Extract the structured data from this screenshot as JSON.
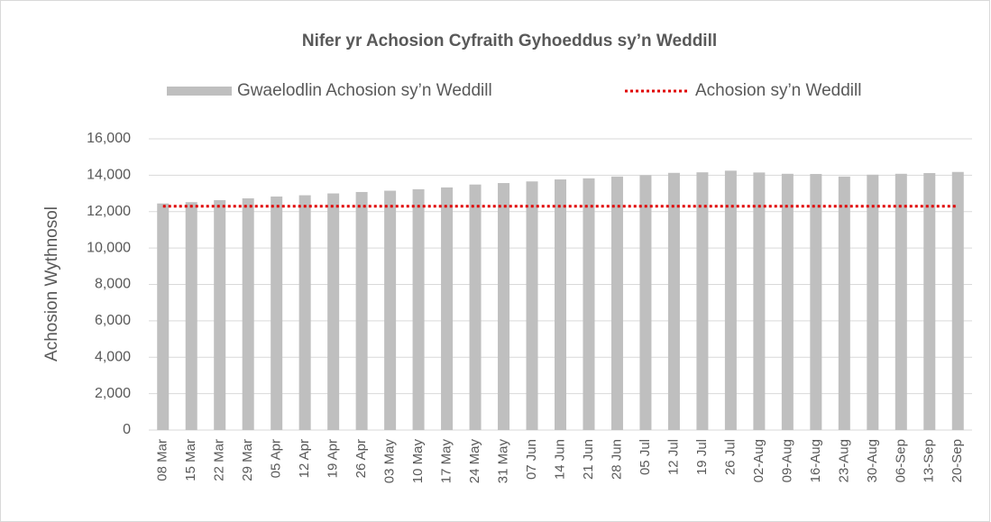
{
  "chart_data": {
    "type": "bar",
    "title": "Nifer yr Achosion Cyfraith Gyhoeddus sy’n Weddill",
    "y_label": "Achosion Wythnosol",
    "categories": [
      "08 Mar",
      "15 Mar",
      "22 Mar",
      "29 Mar",
      "05 Apr",
      "12 Apr",
      "19 Apr",
      "26 Apr",
      "03 May",
      "10 May",
      "17 May",
      "24 May",
      "31 May",
      "07 Jun",
      "14 Jun",
      "21 Jun",
      "28 Jun",
      "05 Jul",
      "12 Jul",
      "19 Jul",
      "26 Jul",
      "02-Aug",
      "09-Aug",
      "16-Aug",
      "23-Aug",
      "30-Aug",
      "06-Sep",
      "13-Sep",
      "20-Sep"
    ],
    "series": [
      {
        "name": "Gwaelodlin Achosion sy’n Weddill",
        "color": "#bfbfbf",
        "type": "bar",
        "values": [
          12450,
          12520,
          12630,
          12730,
          12830,
          12900,
          13000,
          13080,
          13150,
          13230,
          13330,
          13490,
          13570,
          13660,
          13770,
          13830,
          13930,
          14000,
          14130,
          14160,
          14250,
          14150,
          14080,
          14070,
          13930,
          14030,
          14080,
          14120,
          14180
        ]
      },
      {
        "name": "Achosion sy’n Weddill",
        "color": "#e00000",
        "type": "line",
        "values": [
          12300,
          12300,
          12300,
          12300,
          12300,
          12300,
          12300,
          12300,
          12300,
          12300,
          12300,
          12300,
          12300,
          12300,
          12300,
          12300,
          12300,
          12300,
          12300,
          12300,
          12300,
          12300,
          12300,
          12300,
          12300,
          12300,
          12300,
          12300,
          12300
        ]
      }
    ],
    "ylim": [
      0,
      16000
    ],
    "yticks": [
      0,
      {
        "value": 2000,
        "label": "2,000"
      },
      {
        "value": 4000,
        "label": "4,000"
      },
      {
        "value": 6000,
        "label": "6,000"
      },
      {
        "value": 8000,
        "label": "8,000"
      },
      {
        "value": 10000,
        "label": "10,000"
      },
      {
        "value": 12000,
        "label": "12,000"
      },
      {
        "value": 14000,
        "label": "14,000"
      },
      {
        "value": 16000,
        "label": "16,000"
      }
    ],
    "grid": true,
    "legend": "top"
  }
}
